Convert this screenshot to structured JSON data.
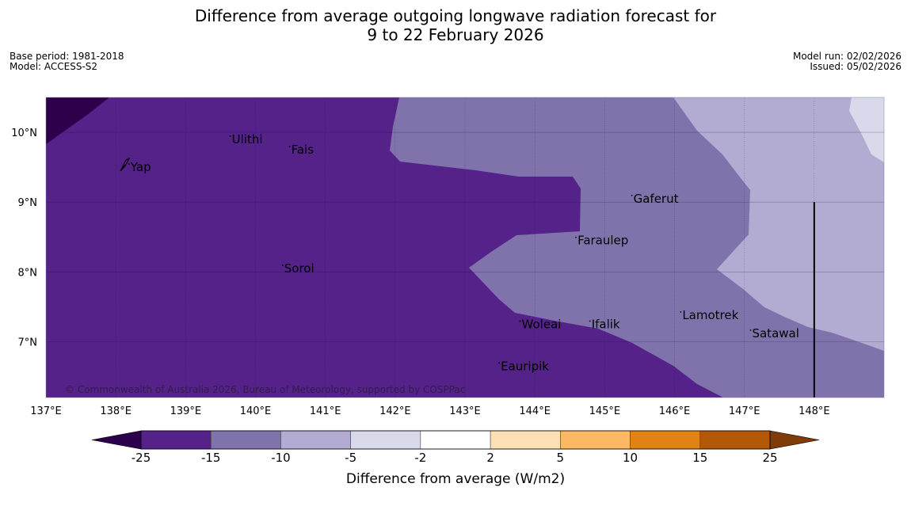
{
  "title": {
    "line1": "Difference from average outgoing longwave radiation forecast for",
    "line2": "9 to 22 February 2026"
  },
  "meta": {
    "base_period": "Base period: 1981-2018",
    "model": "Model: ACCESS-S2",
    "model_run": "Model run: 02/02/2026",
    "issued": "Issued: 05/02/2026"
  },
  "map": {
    "lon_range": [
      137,
      149
    ],
    "lat_range": [
      6.2,
      10.5
    ],
    "lon_ticks": [
      {
        "value": 137,
        "label": "137°E"
      },
      {
        "value": 138,
        "label": "138°E"
      },
      {
        "value": 139,
        "label": "139°E"
      },
      {
        "value": 140,
        "label": "140°E"
      },
      {
        "value": 141,
        "label": "141°E"
      },
      {
        "value": 142,
        "label": "142°E"
      },
      {
        "value": 143,
        "label": "143°E"
      },
      {
        "value": 144,
        "label": "144°E"
      },
      {
        "value": 145,
        "label": "145°E"
      },
      {
        "value": 146,
        "label": "146°E"
      },
      {
        "value": 147,
        "label": "147°E"
      },
      {
        "value": 148,
        "label": "148°E"
      }
    ],
    "lat_ticks": [
      {
        "value": 10,
        "label": "10°N"
      },
      {
        "value": 9,
        "label": "9°N"
      },
      {
        "value": 8,
        "label": "8°N"
      },
      {
        "value": 7,
        "label": "7°N"
      }
    ],
    "places": [
      {
        "name": "Ulithi",
        "lon": 139.65,
        "lat": 9.9
      },
      {
        "name": "Fais",
        "lon": 140.5,
        "lat": 9.75
      },
      {
        "name": "Yap",
        "lon": 138.2,
        "lat": 9.5
      },
      {
        "name": "Gaferut",
        "lon": 145.4,
        "lat": 9.05
      },
      {
        "name": "Faraulep",
        "lon": 144.6,
        "lat": 8.45
      },
      {
        "name": "Sorol",
        "lon": 140.4,
        "lat": 8.05
      },
      {
        "name": "Lamotrek",
        "lon": 146.1,
        "lat": 7.38
      },
      {
        "name": "Woleai",
        "lon": 143.8,
        "lat": 7.25
      },
      {
        "name": "Ifalik",
        "lon": 144.8,
        "lat": 7.25
      },
      {
        "name": "Satawal",
        "lon": 147.1,
        "lat": 7.12
      },
      {
        "name": "Eauripik",
        "lon": 143.5,
        "lat": 6.65
      }
    ],
    "dividing_line": {
      "lon": 148,
      "lat_top": 9,
      "lat_bottom": 6.2
    },
    "copyright": "© Commonwealth of Australia 2026, Bureau of Meteorology, supported by COSPPac"
  },
  "colorbar": {
    "label": "Difference from average (W/m2)",
    "ticks": [
      "-25",
      "-15",
      "-10",
      "-5",
      "-2",
      "2",
      "5",
      "10",
      "15",
      "25"
    ],
    "colors": {
      "below": "#2d004b",
      "bins": [
        "#542288",
        "#8073ac",
        "#b2abd2",
        "#d8daeb",
        "#ffffff",
        "#fee0b6",
        "#fdb863",
        "#e08214",
        "#b35806"
      ],
      "above": "#7f3b08"
    }
  },
  "fields": {
    "deepest": "#2d004b",
    "dark": "#542288",
    "mid": "#8073ac",
    "light": "#b2abd2",
    "pale": "#d8daeb"
  }
}
